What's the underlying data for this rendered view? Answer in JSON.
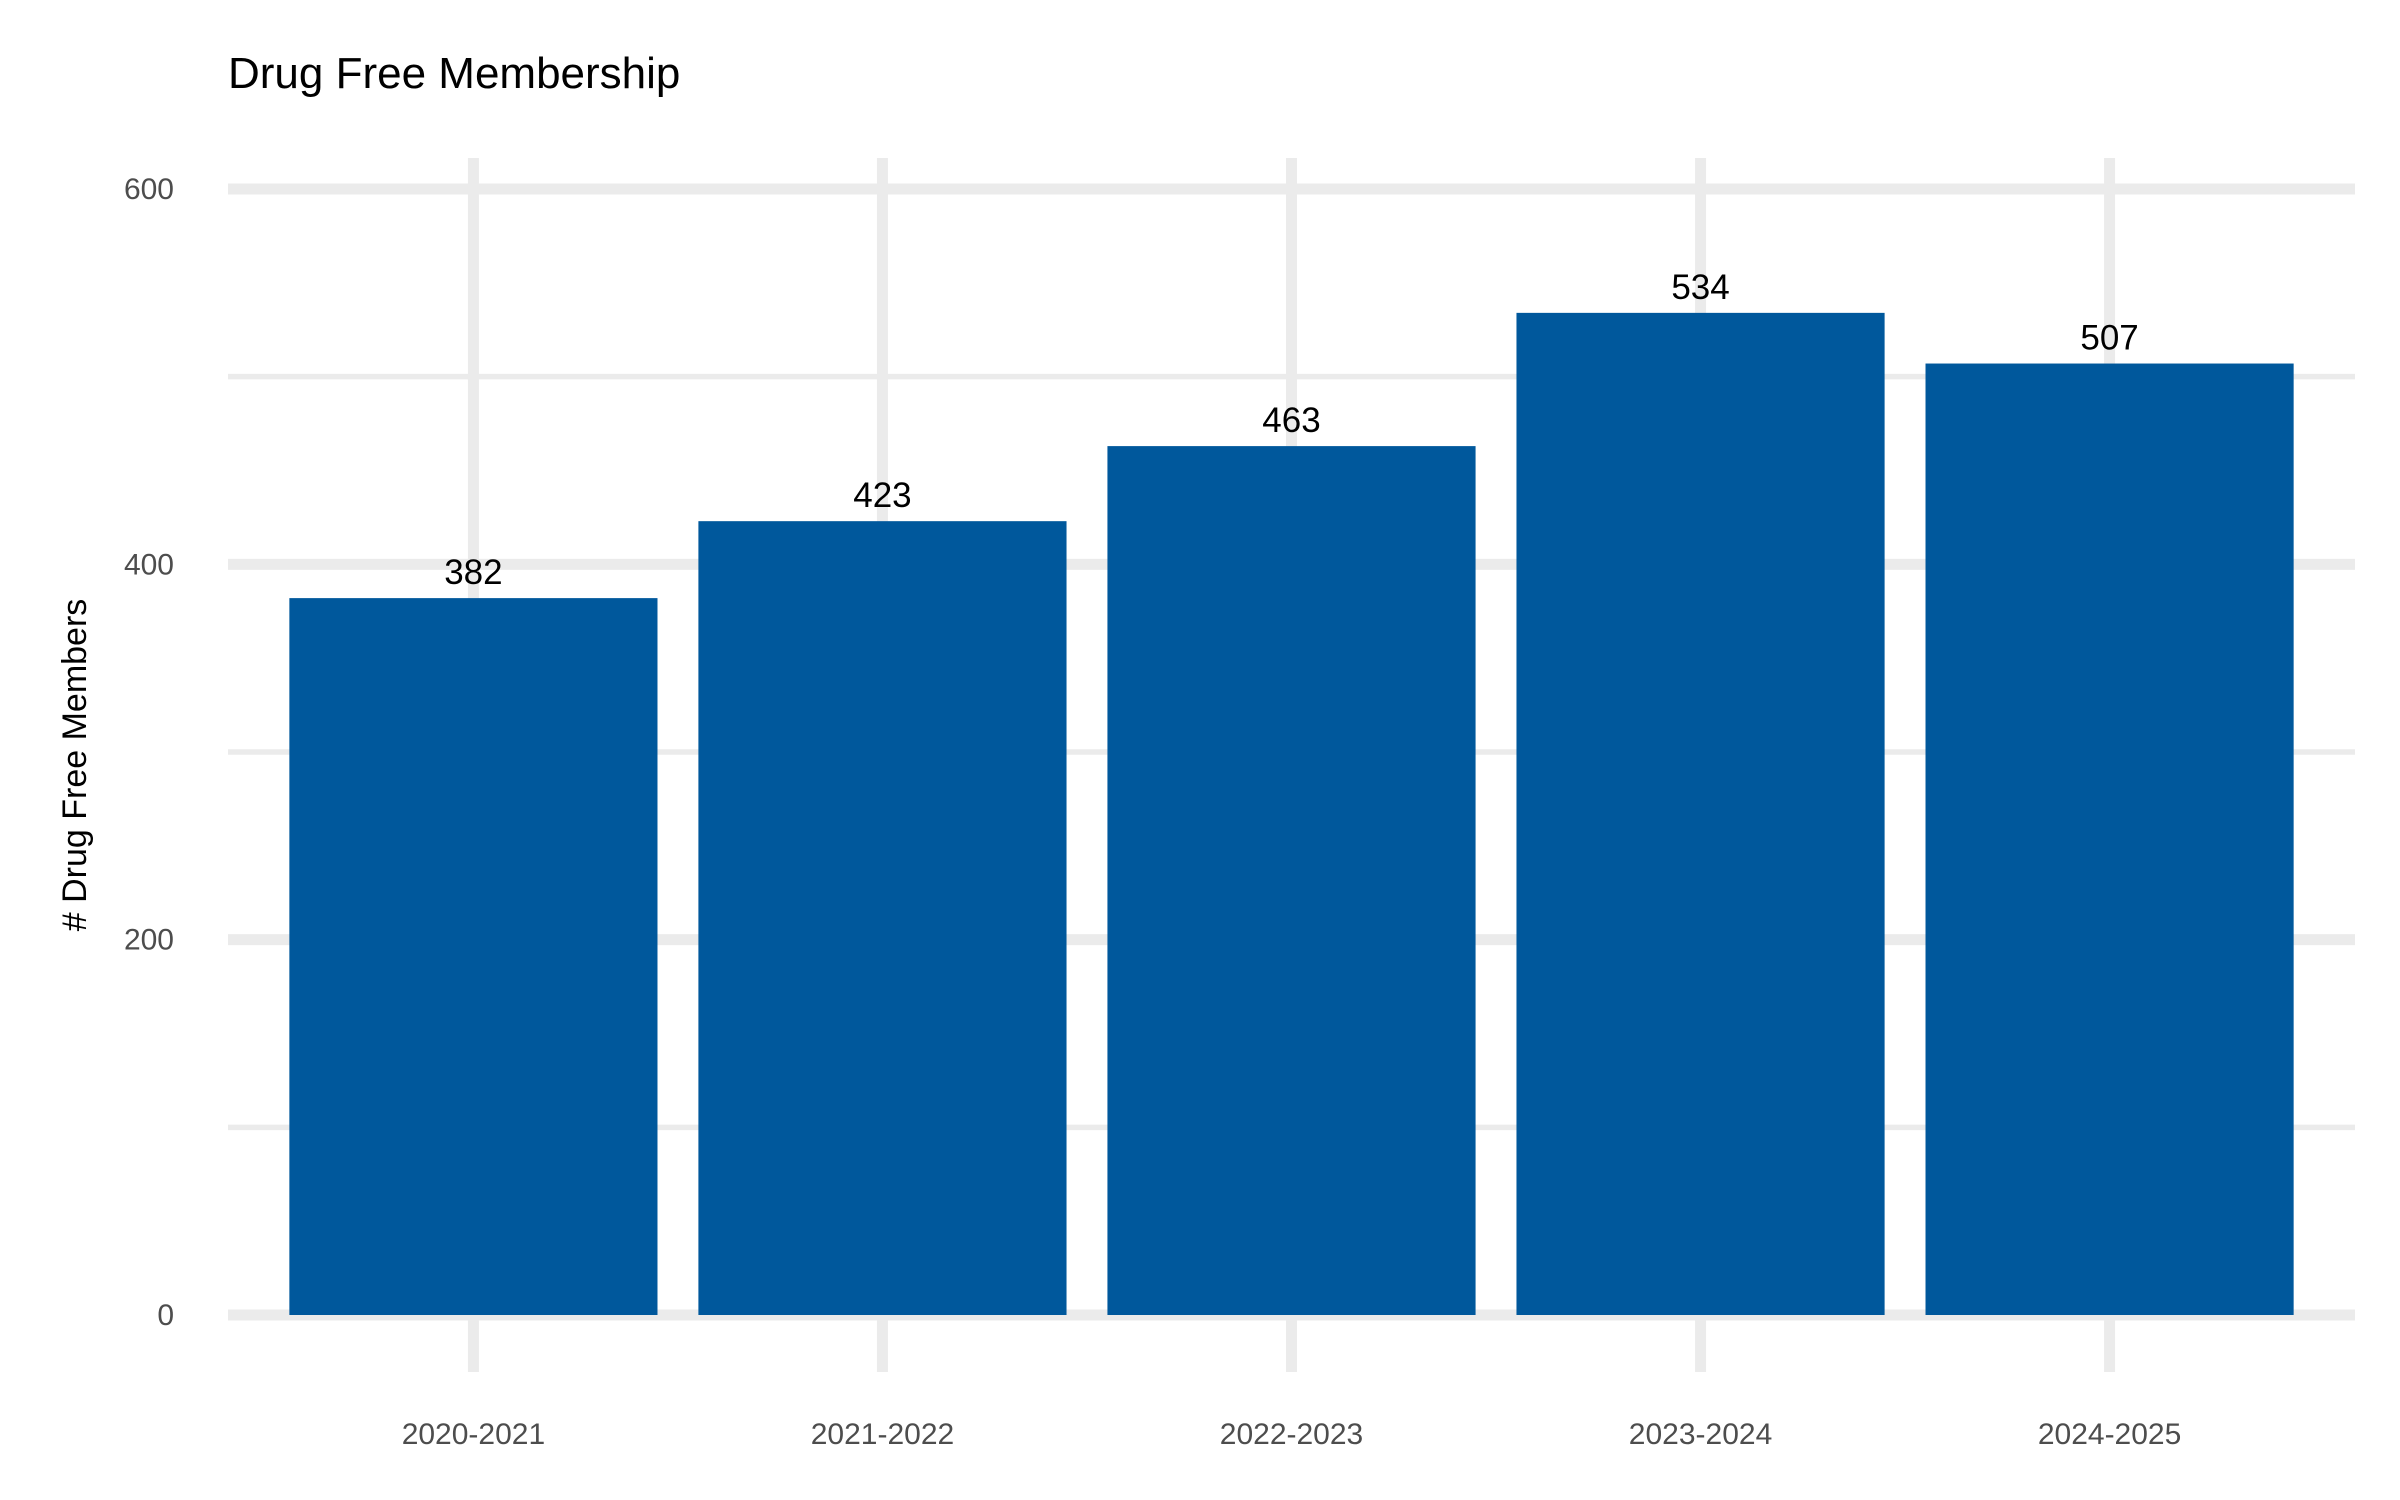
{
  "chart_data": {
    "type": "bar",
    "title": "Drug Free Membership",
    "xlabel": "",
    "ylabel": "# Drug Free Members",
    "categories": [
      "2020-2021",
      "2021-2022",
      "2022-2023",
      "2023-2024",
      "2024-2025"
    ],
    "values": [
      382,
      423,
      463,
      534,
      507
    ],
    "value_labels": [
      "382",
      "423",
      "463",
      "534",
      "507"
    ],
    "ylim": [
      0,
      600
    ],
    "yticks": [
      0,
      200,
      400,
      600
    ],
    "yticks_labels": [
      "0",
      "200",
      "400",
      "600"
    ],
    "y_minor_ticks": [
      100,
      300,
      500
    ],
    "grid": true,
    "legend": "none",
    "bar_color": "#00589c",
    "grid_color": "#ebebeb"
  }
}
